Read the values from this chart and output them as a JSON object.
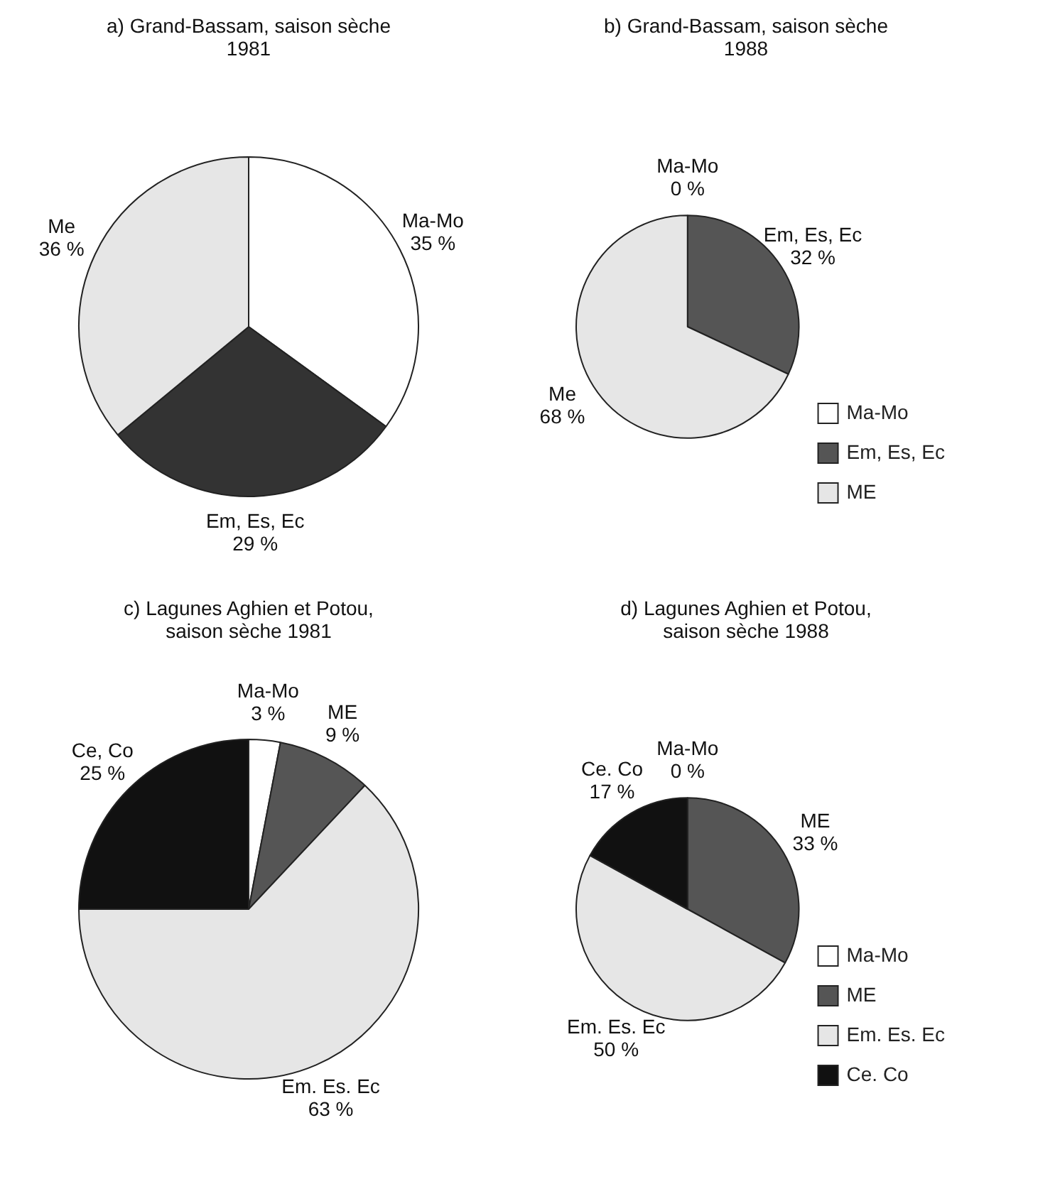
{
  "chart_data": [
    {
      "type": "pie",
      "title": "a) Grand-Bassam, saison sèche 1981",
      "categories": [
        "Ma-Mo",
        "Em, Es, Ec",
        "Me"
      ],
      "values": [
        35,
        29,
        36
      ],
      "colors": [
        "#ffffff",
        "#333333",
        "#e6e6e6"
      ],
      "value_labels": [
        "35 %",
        "29 %",
        "36 %"
      ],
      "legend": false
    },
    {
      "type": "pie",
      "title": "b) Grand-Bassam, saison sèche 1988",
      "categories": [
        "Ma-Mo",
        "Em, Es, Ec",
        "ME"
      ],
      "values": [
        0,
        32,
        68
      ],
      "colors": [
        "#ffffff",
        "#555555",
        "#e6e6e6"
      ],
      "value_labels": [
        "Ma-Mo\n0 %",
        "Em, Es, Ec\n32 %",
        "Me\n68 %"
      ],
      "legend": "right"
    },
    {
      "type": "pie",
      "title": "c) Lagunes Aghien et Potou, saison sèche 1981",
      "categories": [
        "Ma-Mo",
        "ME",
        "Em. Es. Ec",
        "Ce, Co"
      ],
      "values": [
        3,
        9,
        63,
        25
      ],
      "colors": [
        "#ffffff",
        "#555555",
        "#e6e6e6",
        "#111111"
      ],
      "value_labels": [
        "3 %",
        "9 %",
        "63 %",
        "25 %"
      ],
      "legend": false
    },
    {
      "type": "pie",
      "title": "d) Lagunes Aghien et Potou, saison sèche 1988",
      "categories": [
        "Ma-Mo",
        "ME",
        "Em. Es. Ec",
        "Ce. Co"
      ],
      "values": [
        0,
        33,
        50,
        17
      ],
      "colors": [
        "#ffffff",
        "#555555",
        "#e6e6e6",
        "#111111"
      ],
      "value_labels": [
        "Ma-Mo\n0 %",
        "ME\n33 %",
        "Em. Es. Ec\n50 %",
        "Ce. Co\n17 %"
      ],
      "legend": "right"
    }
  ]
}
